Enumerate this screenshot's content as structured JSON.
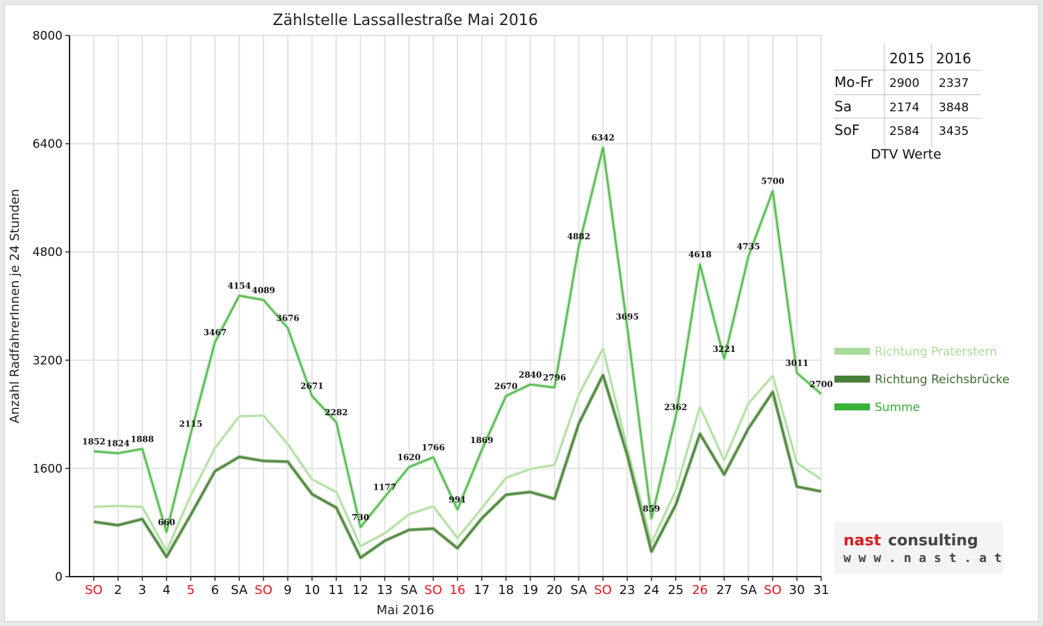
{
  "colors": {
    "praterstern": "#a8dc98",
    "reichsbruecke": "#4a7e3a",
    "summe": "#4cb84c",
    "weekend_label": "#e8141c",
    "weekday_label": "#111111",
    "logo_red": "#d42020",
    "logo_dark": "#444444"
  },
  "chart_data": {
    "type": "line",
    "title": "Zählstelle Lassallestraße Mai 2016",
    "xlabel": "Mai 2016",
    "ylabel": "Anzahl RadfahrerInnen je 24 Stunden",
    "ylim": [
      0,
      8000
    ],
    "yticks": [
      0,
      1600,
      3200,
      4800,
      6400,
      8000
    ],
    "grid": true,
    "legend_position": "right",
    "categories": [
      "SO",
      "2",
      "3",
      "4",
      "5",
      "6",
      "SA",
      "SO",
      "9",
      "10",
      "11",
      "12",
      "13",
      "SA",
      "SO",
      "16",
      "17",
      "18",
      "19",
      "20",
      "SA",
      "SO",
      "23",
      "24",
      "25",
      "26",
      "27",
      "SA",
      "SO",
      "30",
      "31"
    ],
    "red_categories": [
      0,
      4,
      7,
      14,
      15,
      21,
      25,
      28
    ],
    "series": [
      {
        "name": "Richtung Praterstern",
        "values": [
          1030,
          1045,
          1030,
          380,
          1200,
          1900,
          2370,
          2380,
          1960,
          1440,
          1250,
          450,
          640,
          920,
          1040,
          570,
          1010,
          1460,
          1590,
          1650,
          2690,
          3370,
          1900,
          500,
          1270,
          2510,
          1720,
          2560,
          2970,
          1680,
          1440
        ]
      },
      {
        "name": "Richtung Reichsbrücke",
        "values": [
          810,
          760,
          850,
          290,
          915,
          1560,
          1770,
          1710,
          1700,
          1220,
          1020,
          280,
          530,
          690,
          710,
          420,
          860,
          1210,
          1250,
          1150,
          2260,
          2980,
          1800,
          370,
          1060,
          2110,
          1510,
          2190,
          2730,
          1330,
          1260
        ]
      },
      {
        "name": "Summe",
        "values": [
          1852,
          1824,
          1888,
          660,
          2115,
          3467,
          4154,
          4089,
          3676,
          2671,
          2282,
          730,
          1177,
          1620,
          1766,
          991,
          1869,
          2670,
          2840,
          2796,
          4882,
          6342,
          3695,
          859,
          2362,
          4618,
          3221,
          4735,
          5700,
          3011,
          2700
        ]
      }
    ]
  },
  "dtv_table": {
    "caption": "DTV Werte",
    "columns": [
      "2015",
      "2016"
    ],
    "rows": [
      {
        "label": "Mo-Fr",
        "v2015": "2900",
        "v2016": "2337"
      },
      {
        "label": "Sa",
        "v2015": "2174",
        "v2016": "3848"
      },
      {
        "label": "SoF",
        "v2015": "2584",
        "v2016": "3435"
      }
    ]
  },
  "logo": {
    "part1": "nast",
    "part2": "consulting",
    "url": "w w w . n a s t . a t"
  }
}
